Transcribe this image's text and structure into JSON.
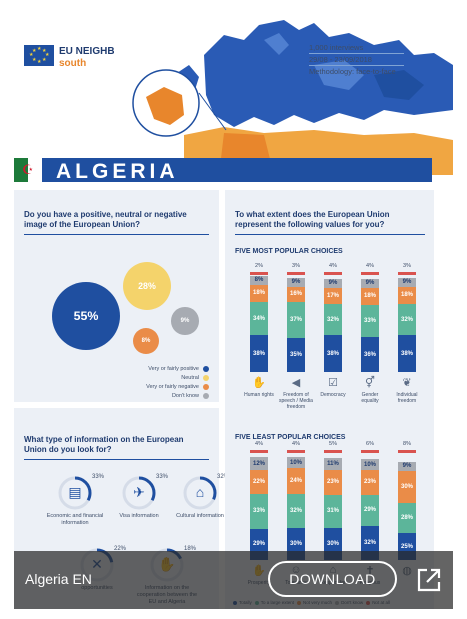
{
  "brand": {
    "title": "EU NEIGHBOURS",
    "subtitle": "south"
  },
  "survey": {
    "interviews": "1,000 interviews",
    "dates": "29/08 - 23/09/2018",
    "methodology": "Methodology: face-to-face"
  },
  "country": "ALGERIA",
  "image_panel": {
    "question": "Do you have a positive, neutral or negative image of the European Union?",
    "bubbles": [
      {
        "label": "55%",
        "value": 55,
        "color": "#1f4fa0"
      },
      {
        "label": "28%",
        "value": 28,
        "color": "#f4d36b"
      },
      {
        "label": "9%",
        "value": 9,
        "color": "#a7abb2"
      },
      {
        "label": "8%",
        "value": 8,
        "color": "#ea8c48"
      }
    ],
    "legend": [
      {
        "label": "Very or fairly positive",
        "color": "#1f4fa0"
      },
      {
        "label": "Neutral",
        "color": "#f4d36b"
      },
      {
        "label": "Very or fairly negative",
        "color": "#ea8c48"
      },
      {
        "label": "Don't know",
        "color": "#a7abb2"
      }
    ]
  },
  "info_panel": {
    "question": "What type of information on the European Union do you look for?",
    "items": [
      {
        "pct": "33%",
        "value": 33,
        "label": "Economic and financial information",
        "icon": "money-icon"
      },
      {
        "pct": "33%",
        "value": 33,
        "label": "Visa information",
        "icon": "plane-icon"
      },
      {
        "pct": "32%",
        "value": 32,
        "label": "Cultural information",
        "icon": "museum-icon"
      },
      {
        "pct": "22%",
        "value": 22,
        "label": "opportunities",
        "icon": "tools-icon"
      },
      {
        "pct": "18%",
        "value": 18,
        "label": "Information on the cooperation between the EU and Algeria",
        "icon": "handshake-icon"
      }
    ]
  },
  "values_panel": {
    "question": "To what extent does the European Union represent the following values for you?",
    "most_title": "FIVE MOST POPULAR CHOICES",
    "least_title": "FIVE LEAST POPULAR CHOICES",
    "colors": {
      "totally": "#1f4fa0",
      "large": "#5cb59a",
      "not_very": "#ea8c48",
      "dont_know": "#a7abb2",
      "not_all": "#d9534f"
    },
    "most": [
      {
        "label": "Human rights",
        "icon": "hands-icon",
        "top": "2%",
        "segs": [
          "38%",
          "34%",
          "18%",
          "8%"
        ]
      },
      {
        "label": "Freedom of speech / Media freedom",
        "icon": "megaphone-icon",
        "top": "3%",
        "segs": [
          "35%",
          "37%",
          "16%",
          "9%"
        ]
      },
      {
        "label": "Democracy",
        "icon": "ballot-icon",
        "top": "4%",
        "segs": [
          "38%",
          "32%",
          "17%",
          "9%"
        ]
      },
      {
        "label": "Gender equality",
        "icon": "gender-icon",
        "top": "4%",
        "segs": [
          "36%",
          "33%",
          "18%",
          "9%"
        ]
      },
      {
        "label": "Individual freedom",
        "icon": "dove-icon",
        "top": "3%",
        "segs": [
          "38%",
          "32%",
          "18%",
          "9%"
        ]
      }
    ],
    "least": [
      {
        "label": "Prosperity",
        "icon": "handshake-icon",
        "top": "4%",
        "segs": [
          "29%",
          "33%",
          "22%",
          "12%"
        ]
      },
      {
        "label": "Tolerance",
        "icon": "people-icon",
        "top": "4%",
        "segs": [
          "30%",
          "32%",
          "24%",
          "10%"
        ]
      },
      {
        "label": "Respect for",
        "icon": "building-icon",
        "top": "5%",
        "segs": [
          "30%",
          "31%",
          "23%",
          "11%"
        ]
      },
      {
        "label": "Religious",
        "icon": "religion-icon",
        "top": "6%",
        "segs": [
          "32%",
          "29%",
          "23%",
          "10%"
        ]
      },
      {
        "label": "",
        "icon": "globe-icon",
        "top": "8%",
        "segs": [
          "25%",
          "28%",
          "30%",
          "9%"
        ]
      }
    ],
    "legend": [
      "Totally",
      "To a large extent",
      "Not very much",
      "Don't know",
      "Not at all"
    ]
  },
  "overlay": {
    "doc_name": "Algeria EN",
    "download_label": "DOWNLOAD"
  }
}
